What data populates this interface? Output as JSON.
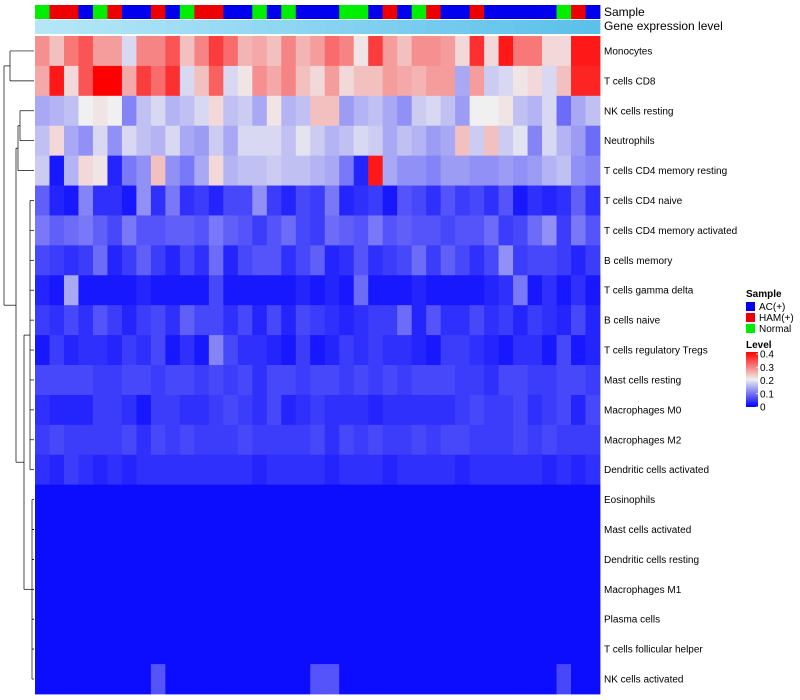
{
  "chart_data": {
    "type": "heatmap",
    "title": "",
    "annotation_labels": {
      "sample": "Sample",
      "gene": "Gene expression level"
    },
    "row_labels": [
      "Monocytes",
      "T cells CD8",
      "NK cells resting",
      "Neutrophils",
      "T cells CD4 memory resting",
      "T cells CD4 naive",
      "T cells CD4 memory activated",
      "B cells memory",
      "T cells gamma delta",
      "B cells naive",
      "T cells regulatory  Tregs",
      "Mast cells resting",
      "Macrophages M0",
      "Macrophages M2",
      "Dendritic cells activated",
      "Eosinophils",
      "Mast cells activated",
      "Dendritic cells resting",
      "Macrophages M1",
      "Plasma cells",
      "T cells follicular helper",
      "NK cells activated"
    ],
    "column_samples": [
      "Normal",
      "HAM(+)",
      "HAM(+)",
      "AC(+)",
      "Normal",
      "HAM(+)",
      "AC(+)",
      "AC(+)",
      "HAM(+)",
      "AC(+)",
      "Normal",
      "HAM(+)",
      "HAM(+)",
      "AC(+)",
      "AC(+)",
      "Normal",
      "AC(+)",
      "Normal",
      "AC(+)",
      "AC(+)",
      "AC(+)",
      "Normal",
      "Normal",
      "AC(+)",
      "HAM(+)",
      "AC(+)",
      "Normal",
      "HAM(+)",
      "AC(+)",
      "AC(+)",
      "HAM(+)",
      "AC(+)",
      "AC(+)",
      "AC(+)",
      "AC(+)",
      "AC(+)",
      "Normal",
      "HAM(+)",
      "AC(+)"
    ],
    "gene_expression_levels": [
      0.04,
      0.05,
      0.05,
      0.06,
      0.07,
      0.08,
      0.09,
      0.1,
      0.11,
      0.12,
      0.13,
      0.14,
      0.15,
      0.16,
      0.17,
      0.18,
      0.19,
      0.2,
      0.21,
      0.22,
      0.23,
      0.24,
      0.25,
      0.26,
      0.27,
      0.28,
      0.29,
      0.3,
      0.31,
      0.32,
      0.33,
      0.34,
      0.35,
      0.36,
      0.37,
      0.38,
      0.39,
      0.4,
      0.41
    ],
    "values": [
      [
        0.28,
        0.24,
        0.3,
        0.33,
        0.27,
        0.27,
        0.18,
        0.29,
        0.29,
        0.33,
        0.24,
        0.29,
        0.35,
        0.31,
        0.25,
        0.26,
        0.24,
        0.29,
        0.25,
        0.27,
        0.31,
        0.29,
        0.21,
        0.35,
        0.27,
        0.24,
        0.28,
        0.28,
        0.27,
        0.22,
        0.36,
        0.22,
        0.38,
        0.3,
        0.3,
        0.22,
        0.22,
        0.38,
        0.38
      ],
      [
        0.26,
        0.38,
        0.22,
        0.33,
        0.4,
        0.4,
        0.26,
        0.35,
        0.31,
        0.36,
        0.18,
        0.24,
        0.32,
        0.18,
        0.21,
        0.28,
        0.26,
        0.29,
        0.24,
        0.22,
        0.27,
        0.22,
        0.24,
        0.24,
        0.27,
        0.26,
        0.25,
        0.27,
        0.27,
        0.14,
        0.27,
        0.17,
        0.18,
        0.21,
        0.22,
        0.18,
        0.24,
        0.37,
        0.37
      ],
      [
        0.14,
        0.15,
        0.16,
        0.2,
        0.21,
        0.2,
        0.11,
        0.16,
        0.18,
        0.15,
        0.16,
        0.18,
        0.22,
        0.16,
        0.17,
        0.14,
        0.21,
        0.15,
        0.16,
        0.24,
        0.24,
        0.13,
        0.15,
        0.16,
        0.14,
        0.12,
        0.17,
        0.18,
        0.16,
        0.13,
        0.2,
        0.2,
        0.21,
        0.16,
        0.15,
        0.18,
        0.09,
        0.14,
        0.16
      ],
      [
        0.16,
        0.22,
        0.14,
        0.12,
        0.18,
        0.12,
        0.18,
        0.16,
        0.15,
        0.18,
        0.14,
        0.13,
        0.17,
        0.14,
        0.18,
        0.18,
        0.18,
        0.16,
        0.19,
        0.17,
        0.15,
        0.16,
        0.18,
        0.17,
        0.14,
        0.16,
        0.15,
        0.13,
        0.14,
        0.24,
        0.17,
        0.24,
        0.17,
        0.19,
        0.11,
        0.18,
        0.15,
        0.13,
        0.09
      ],
      [
        0.17,
        0.02,
        0.15,
        0.22,
        0.21,
        0.03,
        0.1,
        0.12,
        0.24,
        0.12,
        0.1,
        0.14,
        0.22,
        0.15,
        0.16,
        0.16,
        0.17,
        0.16,
        0.16,
        0.15,
        0.14,
        0.1,
        0.03,
        0.38,
        0.14,
        0.12,
        0.12,
        0.11,
        0.13,
        0.13,
        0.12,
        0.12,
        0.13,
        0.12,
        0.13,
        0.15,
        0.16,
        0.12,
        0.11
      ],
      [
        0.08,
        0.03,
        0.02,
        0.11,
        0.04,
        0.04,
        0.02,
        0.12,
        0.04,
        0.1,
        0.04,
        0.05,
        0.03,
        0.06,
        0.06,
        0.12,
        0.05,
        0.03,
        0.06,
        0.05,
        0.1,
        0.03,
        0.04,
        0.05,
        0.02,
        0.07,
        0.06,
        0.04,
        0.07,
        0.05,
        0.06,
        0.04,
        0.07,
        0.02,
        0.04,
        0.03,
        0.04,
        0.08,
        0.04
      ],
      [
        0.1,
        0.08,
        0.09,
        0.1,
        0.08,
        0.06,
        0.1,
        0.07,
        0.07,
        0.08,
        0.08,
        0.07,
        0.1,
        0.08,
        0.07,
        0.05,
        0.07,
        0.09,
        0.06,
        0.05,
        0.09,
        0.08,
        0.07,
        0.1,
        0.07,
        0.08,
        0.07,
        0.07,
        0.06,
        0.07,
        0.07,
        0.09,
        0.05,
        0.06,
        0.09,
        0.12,
        0.05,
        0.1,
        0.07
      ],
      [
        0.06,
        0.05,
        0.04,
        0.05,
        0.09,
        0.03,
        0.05,
        0.08,
        0.05,
        0.03,
        0.06,
        0.04,
        0.09,
        0.03,
        0.06,
        0.07,
        0.07,
        0.04,
        0.06,
        0.08,
        0.03,
        0.04,
        0.07,
        0.04,
        0.05,
        0.06,
        0.09,
        0.05,
        0.08,
        0.06,
        0.04,
        0.06,
        0.12,
        0.05,
        0.06,
        0.06,
        0.05,
        0.03,
        0.05
      ],
      [
        0.03,
        0.02,
        0.14,
        0.02,
        0.02,
        0.02,
        0.02,
        0.03,
        0.02,
        0.02,
        0.02,
        0.02,
        0.06,
        0.02,
        0.02,
        0.02,
        0.02,
        0.02,
        0.03,
        0.02,
        0.03,
        0.02,
        0.09,
        0.02,
        0.02,
        0.02,
        0.03,
        0.02,
        0.02,
        0.02,
        0.02,
        0.03,
        0.04,
        0.1,
        0.02,
        0.04,
        0.02,
        0.04,
        0.02
      ],
      [
        0.05,
        0.04,
        0.06,
        0.04,
        0.07,
        0.05,
        0.03,
        0.05,
        0.06,
        0.04,
        0.08,
        0.06,
        0.06,
        0.04,
        0.06,
        0.03,
        0.06,
        0.03,
        0.06,
        0.05,
        0.04,
        0.03,
        0.04,
        0.05,
        0.05,
        0.09,
        0.03,
        0.07,
        0.04,
        0.04,
        0.06,
        0.04,
        0.05,
        0.03,
        0.05,
        0.04,
        0.03,
        0.06,
        0.03
      ],
      [
        0.02,
        0.05,
        0.03,
        0.04,
        0.04,
        0.03,
        0.05,
        0.04,
        0.06,
        0.02,
        0.04,
        0.02,
        0.11,
        0.06,
        0.04,
        0.04,
        0.03,
        0.02,
        0.05,
        0.02,
        0.03,
        0.05,
        0.04,
        0.05,
        0.04,
        0.04,
        0.03,
        0.02,
        0.05,
        0.05,
        0.04,
        0.03,
        0.02,
        0.04,
        0.04,
        0.02,
        0.06,
        0.02,
        0.03
      ],
      [
        0.06,
        0.06,
        0.06,
        0.06,
        0.05,
        0.05,
        0.06,
        0.06,
        0.05,
        0.06,
        0.06,
        0.05,
        0.06,
        0.05,
        0.06,
        0.04,
        0.06,
        0.06,
        0.05,
        0.06,
        0.06,
        0.05,
        0.06,
        0.05,
        0.06,
        0.05,
        0.06,
        0.06,
        0.06,
        0.05,
        0.05,
        0.04,
        0.06,
        0.06,
        0.05,
        0.05,
        0.06,
        0.06,
        0.05
      ],
      [
        0.04,
        0.03,
        0.03,
        0.03,
        0.05,
        0.05,
        0.04,
        0.02,
        0.05,
        0.05,
        0.04,
        0.04,
        0.05,
        0.06,
        0.05,
        0.04,
        0.06,
        0.03,
        0.04,
        0.05,
        0.04,
        0.04,
        0.04,
        0.03,
        0.04,
        0.04,
        0.04,
        0.04,
        0.04,
        0.05,
        0.06,
        0.05,
        0.05,
        0.06,
        0.04,
        0.05,
        0.06,
        0.03,
        0.06
      ],
      [
        0.05,
        0.06,
        0.05,
        0.05,
        0.05,
        0.05,
        0.06,
        0.04,
        0.06,
        0.05,
        0.06,
        0.05,
        0.05,
        0.05,
        0.06,
        0.05,
        0.05,
        0.05,
        0.05,
        0.06,
        0.04,
        0.06,
        0.05,
        0.06,
        0.05,
        0.05,
        0.06,
        0.05,
        0.06,
        0.06,
        0.05,
        0.05,
        0.05,
        0.06,
        0.05,
        0.06,
        0.05,
        0.05,
        0.05
      ],
      [
        0.04,
        0.03,
        0.05,
        0.04,
        0.03,
        0.04,
        0.03,
        0.04,
        0.04,
        0.04,
        0.04,
        0.04,
        0.04,
        0.04,
        0.04,
        0.03,
        0.04,
        0.04,
        0.04,
        0.04,
        0.03,
        0.04,
        0.04,
        0.04,
        0.03,
        0.04,
        0.04,
        0.04,
        0.04,
        0.03,
        0.04,
        0.04,
        0.04,
        0.04,
        0.04,
        0.03,
        0.04,
        0.03,
        0.04
      ],
      [
        0.01,
        0.01,
        0.01,
        0.01,
        0.01,
        0.01,
        0.01,
        0.01,
        0.01,
        0.01,
        0.01,
        0.01,
        0.01,
        0.01,
        0.01,
        0.01,
        0.01,
        0.01,
        0.01,
        0.01,
        0.01,
        0.01,
        0.01,
        0.01,
        0.01,
        0.01,
        0.01,
        0.01,
        0.01,
        0.01,
        0.01,
        0.01,
        0.01,
        0.01,
        0.01,
        0.01,
        0.01,
        0.01,
        0.01
      ],
      [
        0.01,
        0.01,
        0.01,
        0.01,
        0.01,
        0.01,
        0.01,
        0.01,
        0.01,
        0.01,
        0.01,
        0.01,
        0.01,
        0.01,
        0.01,
        0.01,
        0.01,
        0.01,
        0.01,
        0.01,
        0.01,
        0.01,
        0.01,
        0.01,
        0.01,
        0.01,
        0.01,
        0.01,
        0.01,
        0.01,
        0.01,
        0.01,
        0.01,
        0.01,
        0.01,
        0.01,
        0.01,
        0.01,
        0.01
      ],
      [
        0.01,
        0.01,
        0.01,
        0.01,
        0.01,
        0.01,
        0.01,
        0.01,
        0.01,
        0.01,
        0.01,
        0.01,
        0.01,
        0.01,
        0.01,
        0.01,
        0.01,
        0.01,
        0.01,
        0.01,
        0.01,
        0.01,
        0.01,
        0.01,
        0.01,
        0.01,
        0.01,
        0.01,
        0.01,
        0.01,
        0.01,
        0.01,
        0.01,
        0.01,
        0.01,
        0.01,
        0.01,
        0.01,
        0.01
      ],
      [
        0.01,
        0.01,
        0.01,
        0.01,
        0.01,
        0.01,
        0.01,
        0.01,
        0.01,
        0.01,
        0.01,
        0.01,
        0.01,
        0.01,
        0.01,
        0.01,
        0.01,
        0.01,
        0.01,
        0.01,
        0.01,
        0.01,
        0.01,
        0.01,
        0.01,
        0.01,
        0.01,
        0.01,
        0.01,
        0.01,
        0.01,
        0.01,
        0.01,
        0.01,
        0.01,
        0.01,
        0.01,
        0.01,
        0.01
      ],
      [
        0.01,
        0.01,
        0.01,
        0.01,
        0.01,
        0.01,
        0.01,
        0.01,
        0.01,
        0.01,
        0.01,
        0.01,
        0.01,
        0.01,
        0.01,
        0.01,
        0.01,
        0.01,
        0.01,
        0.01,
        0.01,
        0.01,
        0.01,
        0.01,
        0.01,
        0.01,
        0.01,
        0.01,
        0.01,
        0.01,
        0.01,
        0.01,
        0.01,
        0.01,
        0.01,
        0.01,
        0.01,
        0.01,
        0.01
      ],
      [
        0.01,
        0.01,
        0.01,
        0.01,
        0.01,
        0.01,
        0.01,
        0.01,
        0.01,
        0.01,
        0.01,
        0.01,
        0.01,
        0.01,
        0.01,
        0.01,
        0.01,
        0.01,
        0.01,
        0.01,
        0.01,
        0.01,
        0.01,
        0.01,
        0.01,
        0.01,
        0.01,
        0.01,
        0.01,
        0.01,
        0.01,
        0.01,
        0.01,
        0.01,
        0.01,
        0.01,
        0.01,
        0.01,
        0.01
      ],
      [
        0.01,
        0.01,
        0.01,
        0.01,
        0.01,
        0.01,
        0.01,
        0.01,
        0.07,
        0.01,
        0.01,
        0.01,
        0.01,
        0.01,
        0.01,
        0.01,
        0.01,
        0.01,
        0.01,
        0.07,
        0.07,
        0.01,
        0.01,
        0.01,
        0.01,
        0.01,
        0.01,
        0.01,
        0.01,
        0.01,
        0.01,
        0.01,
        0.01,
        0.01,
        0.01,
        0.01,
        0.06,
        0.01,
        0.01
      ]
    ],
    "color_scale": {
      "low": "#0000ff",
      "mid": "#f0f0f0",
      "high": "#ff0000",
      "domain": [
        0,
        0.2,
        0.4
      ]
    },
    "sample_colors": {
      "AC(+)": "#0000ee",
      "HAM(+)": "#ee0000",
      "Normal": "#00ee00"
    },
    "gene_color_range": [
      "#b4e6f8",
      "#5bc0ea"
    ],
    "legend": {
      "sample_title": "Sample",
      "sample_items": [
        "AC(+)",
        "HAM(+)",
        "Normal"
      ],
      "level_title": "Level",
      "level_ticks": [
        "0.4",
        "0.3",
        "0.2",
        "0.1",
        "0"
      ],
      "placement": "right"
    }
  }
}
